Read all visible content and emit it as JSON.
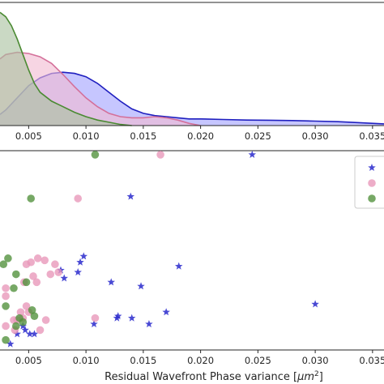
{
  "chart_data": [
    {
      "type": "area",
      "xlim": [
        0.0025,
        0.036
      ],
      "ylim": [
        0,
        1
      ],
      "x_ticks": [
        "0.005",
        "0.010",
        "0.015",
        "0.020",
        "0.025",
        "0.030",
        "0.035"
      ],
      "x_tick_values": [
        0.005,
        0.01,
        0.015,
        0.02,
        0.025,
        0.03,
        0.035
      ],
      "grid": false,
      "series": [
        {
          "color": "#1f1fbf",
          "fill": "#a3a3ff",
          "x": [
            0.0025,
            0.003,
            0.004,
            0.005,
            0.006,
            0.007,
            0.008,
            0.009,
            0.01,
            0.011,
            0.012,
            0.013,
            0.014,
            0.015,
            0.016,
            0.017,
            0.018,
            0.019,
            0.02,
            0.022,
            0.024,
            0.026,
            0.028,
            0.03,
            0.032,
            0.034,
            0.036
          ],
          "y": [
            0.1,
            0.14,
            0.25,
            0.36,
            0.43,
            0.47,
            0.48,
            0.47,
            0.44,
            0.38,
            0.3,
            0.22,
            0.15,
            0.11,
            0.09,
            0.08,
            0.07,
            0.06,
            0.06,
            0.055,
            0.05,
            0.048,
            0.045,
            0.04,
            0.035,
            0.025,
            0.015
          ]
        },
        {
          "color": "#d4709a",
          "fill": "#f2bcd2",
          "x": [
            0.0025,
            0.003,
            0.004,
            0.005,
            0.006,
            0.007,
            0.008,
            0.009,
            0.01,
            0.011,
            0.012,
            0.013,
            0.014,
            0.015,
            0.016,
            0.017,
            0.018,
            0.019,
            0.02
          ],
          "y": [
            0.6,
            0.64,
            0.66,
            0.65,
            0.62,
            0.56,
            0.46,
            0.35,
            0.25,
            0.17,
            0.11,
            0.08,
            0.07,
            0.07,
            0.08,
            0.07,
            0.05,
            0.02,
            0.0
          ]
        },
        {
          "color": "#4a8a32",
          "fill": "#a9c2a0",
          "x": [
            0.0025,
            0.003,
            0.0035,
            0.004,
            0.0045,
            0.005,
            0.0055,
            0.006,
            0.007,
            0.008,
            0.009,
            0.01,
            0.011,
            0.012,
            0.013,
            0.014
          ],
          "y": [
            1.02,
            0.98,
            0.9,
            0.78,
            0.64,
            0.5,
            0.38,
            0.3,
            0.22,
            0.17,
            0.12,
            0.08,
            0.05,
            0.03,
            0.01,
            0.0
          ]
        }
      ]
    },
    {
      "type": "scatter",
      "xlabel_prefix": "Residual Wavefront Phase variance [",
      "xlabel_unit": "μm",
      "xlabel_power": "2",
      "xlabel_suffix": "]",
      "xlim": [
        0.0025,
        0.036
      ],
      "ylim": [
        0,
        1
      ],
      "x_ticks": [
        "0.005",
        "0.010",
        "0.015",
        "0.020",
        "0.025",
        "0.030",
        "0.035"
      ],
      "x_tick_values": [
        0.005,
        0.01,
        0.015,
        0.02,
        0.025,
        0.03,
        0.035
      ],
      "legend": "top-right",
      "series": [
        {
          "marker": "star",
          "color": "#2a2acc",
          "x": [
            0.0245,
            0.0139,
            0.0098,
            0.0095,
            0.0093,
            0.0078,
            0.0081,
            0.0122,
            0.0148,
            0.0181,
            0.03,
            0.017,
            0.0128,
            0.0127,
            0.014,
            0.0155,
            0.0107,
            0.0047,
            0.0045,
            0.004,
            0.0051,
            0.0055,
            0.0034
          ],
          "y": [
            0.98,
            0.77,
            0.47,
            0.44,
            0.39,
            0.4,
            0.36,
            0.34,
            0.32,
            0.42,
            0.23,
            0.19,
            0.17,
            0.16,
            0.16,
            0.13,
            0.13,
            0.1,
            0.12,
            0.08,
            0.08,
            0.08,
            0.03
          ]
        },
        {
          "marker": "circle",
          "color": "#e896b8",
          "x": [
            0.0165,
            0.0093,
            0.0058,
            0.0064,
            0.0052,
            0.0048,
            0.0073,
            0.0076,
            0.0069,
            0.0054,
            0.0057,
            0.0046,
            0.003,
            0.003,
            0.0048,
            0.005,
            0.0043,
            0.0037,
            0.004,
            0.0045,
            0.0065,
            0.0108,
            0.006,
            0.0038,
            0.003
          ],
          "y": [
            0.98,
            0.76,
            0.46,
            0.45,
            0.44,
            0.43,
            0.43,
            0.39,
            0.38,
            0.37,
            0.34,
            0.34,
            0.31,
            0.27,
            0.22,
            0.19,
            0.19,
            0.15,
            0.15,
            0.16,
            0.15,
            0.16,
            0.1,
            0.1,
            0.12
          ]
        },
        {
          "marker": "circle",
          "color": "#4f8f3a",
          "x": [
            0.0108,
            0.0052,
            0.0032,
            0.0028,
            0.0039,
            0.0048,
            0.0037,
            0.003,
            0.0053,
            0.0055,
            0.0042,
            0.0045,
            0.0039,
            0.003
          ],
          "y": [
            0.98,
            0.76,
            0.46,
            0.43,
            0.38,
            0.34,
            0.31,
            0.22,
            0.2,
            0.17,
            0.16,
            0.14,
            0.12,
            0.05
          ]
        }
      ]
    }
  ]
}
